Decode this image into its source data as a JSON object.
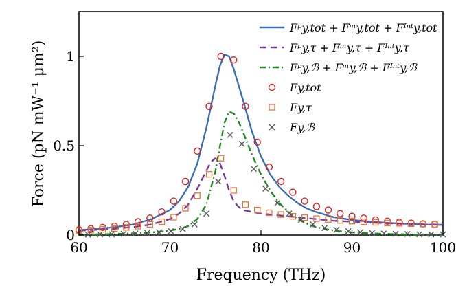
{
  "chart_data": {
    "type": "line",
    "xlabel": "Frequency (THz)",
    "ylabel": "Force (pN mW⁻¹ μm²)",
    "xlim": [
      60,
      100
    ],
    "ylim": [
      0,
      1.25
    ],
    "xticks": [
      60,
      70,
      80,
      90,
      100
    ],
    "xtick_labels": [
      "60",
      "70",
      "80",
      "90",
      "100"
    ],
    "yticks": [
      0,
      0.5,
      1
    ],
    "ytick_labels": [
      "0",
      "0.5",
      "1"
    ],
    "grid": false,
    "legend_position": "top-right",
    "series": [
      {
        "name": "F^p_{y,tot} + F^m_{y,tot} + F^int_{y,tot}",
        "legend_label": "Fᵖy,tot + Fᵐy,tot + Fᴵⁿᵗy,tot",
        "kind": "line",
        "style": "solid",
        "color": "#3a6fb5",
        "x": [
          60,
          62,
          64,
          66,
          68,
          70,
          71,
          72,
          73,
          74,
          75,
          75.5,
          76,
          76.5,
          77,
          78,
          79,
          80,
          81,
          82,
          83,
          84,
          85,
          86,
          88,
          90,
          92,
          94,
          96,
          98,
          100
        ],
        "y": [
          0.028,
          0.035,
          0.045,
          0.06,
          0.09,
          0.14,
          0.19,
          0.27,
          0.4,
          0.6,
          0.84,
          0.95,
          1.01,
          1.0,
          0.93,
          0.76,
          0.58,
          0.44,
          0.34,
          0.27,
          0.22,
          0.18,
          0.15,
          0.13,
          0.1,
          0.085,
          0.075,
          0.068,
          0.063,
          0.059,
          0.057
        ]
      },
      {
        "name": "F^p_{y,T} + F^m_{y,T} + F^int_{y,T}",
        "legend_label": "Fᵖy,τ + Fᵐy,τ + Fᴵⁿᵗy,τ",
        "kind": "line",
        "style": "dashed",
        "color": "#7a3a9a",
        "x": [
          60,
          62,
          64,
          66,
          68,
          70,
          71,
          72,
          73,
          74,
          74.5,
          75,
          75.5,
          76,
          76.5,
          77,
          77.5,
          78,
          79,
          80,
          82,
          84,
          86,
          88,
          90,
          92,
          94,
          96,
          98,
          100
        ],
        "y": [
          0.025,
          0.03,
          0.036,
          0.045,
          0.06,
          0.09,
          0.12,
          0.17,
          0.26,
          0.36,
          0.41,
          0.43,
          0.4,
          0.33,
          0.25,
          0.19,
          0.16,
          0.14,
          0.13,
          0.12,
          0.11,
          0.1,
          0.09,
          0.08,
          0.075,
          0.07,
          0.066,
          0.063,
          0.06,
          0.058
        ]
      },
      {
        "name": "F^p_{y,B} + F^m_{y,B} + F^int_{y,B}",
        "legend_label": "Fᵖy,ℬ + Fᵐy,ℬ + Fᴵⁿᵗy,ℬ",
        "kind": "line",
        "style": "dashdot",
        "color": "#1f8a1f",
        "x": [
          60,
          62,
          64,
          66,
          68,
          70,
          71,
          72,
          73,
          74,
          75,
          75.5,
          76,
          76.5,
          77,
          77.5,
          78,
          79,
          80,
          81,
          82,
          83,
          84,
          85,
          86,
          88,
          90,
          92,
          94,
          96,
          98,
          100
        ],
        "y": [
          0.002,
          0.004,
          0.006,
          0.01,
          0.015,
          0.025,
          0.035,
          0.05,
          0.09,
          0.17,
          0.36,
          0.5,
          0.63,
          0.69,
          0.68,
          0.64,
          0.58,
          0.45,
          0.34,
          0.25,
          0.18,
          0.13,
          0.09,
          0.065,
          0.045,
          0.025,
          0.015,
          0.01,
          0.006,
          0.004,
          0.003,
          0.002
        ]
      },
      {
        "name": "F_{y,tot}",
        "legend_label": "Fy,tot",
        "kind": "markers",
        "marker": "circle",
        "color": "#e02020",
        "x": [
          60,
          61.3,
          62.6,
          63.9,
          65.2,
          66.5,
          67.8,
          69.1,
          70.4,
          71.7,
          73,
          74.3,
          75.6,
          77,
          78.3,
          79.6,
          80.9,
          82.2,
          83.5,
          84.8,
          86.1,
          87.4,
          88.7,
          90,
          91.3,
          92.6,
          93.9,
          95.2,
          96.5,
          97.8,
          99.1
        ],
        "y": [
          0.03,
          0.036,
          0.043,
          0.05,
          0.06,
          0.075,
          0.095,
          0.13,
          0.19,
          0.3,
          0.47,
          0.72,
          1.0,
          0.98,
          0.72,
          0.52,
          0.38,
          0.3,
          0.24,
          0.19,
          0.16,
          0.14,
          0.12,
          0.105,
          0.095,
          0.085,
          0.078,
          0.072,
          0.067,
          0.063,
          0.06
        ]
      },
      {
        "name": "F_{y,T}",
        "legend_label": "Fy,τ",
        "kind": "markers",
        "marker": "square",
        "color": "#e8743a",
        "x": [
          60,
          61.3,
          62.6,
          63.9,
          65.2,
          66.5,
          67.8,
          69.1,
          70.4,
          71.7,
          73,
          74.3,
          75.6,
          77,
          78.3,
          79.6,
          80.9,
          82.2,
          83.5,
          84.8,
          86.1,
          87.4,
          88.7,
          90,
          91.3,
          92.6,
          93.9,
          95.2,
          96.5,
          97.8,
          99.1
        ],
        "y": [
          0.025,
          0.028,
          0.032,
          0.037,
          0.043,
          0.05,
          0.06,
          0.075,
          0.1,
          0.15,
          0.22,
          0.34,
          0.43,
          0.25,
          0.17,
          0.14,
          0.125,
          0.115,
          0.105,
          0.098,
          0.092,
          0.087,
          0.082,
          0.078,
          0.074,
          0.071,
          0.068,
          0.066,
          0.064,
          0.062,
          0.06
        ]
      },
      {
        "name": "F_{y,B}",
        "legend_label": "Fy,ℬ",
        "kind": "markers",
        "marker": "x",
        "color": "#555555",
        "x": [
          61,
          62.3,
          63.6,
          64.9,
          66.2,
          67.5,
          68.8,
          70.1,
          71.4,
          72.7,
          74,
          75.3,
          76.6,
          77.9,
          79.2,
          80.5,
          81.8,
          83.1,
          84.4,
          85.7,
          87,
          88.3,
          89.6,
          90.9,
          92.2,
          93.5,
          94.8,
          96.1,
          97.4,
          98.7,
          100
        ],
        "y": [
          0.003,
          0.004,
          0.005,
          0.007,
          0.009,
          0.012,
          0.016,
          0.022,
          0.034,
          0.06,
          0.12,
          0.3,
          0.56,
          0.51,
          0.37,
          0.26,
          0.18,
          0.12,
          0.085,
          0.06,
          0.04,
          0.03,
          0.022,
          0.016,
          0.012,
          0.009,
          0.007,
          0.006,
          0.005,
          0.004,
          0.004
        ]
      }
    ]
  }
}
